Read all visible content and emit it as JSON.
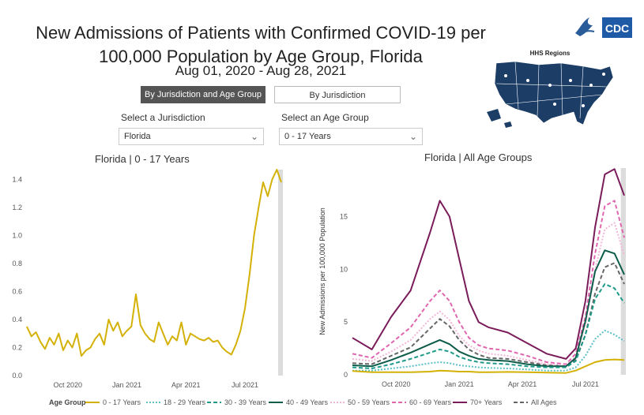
{
  "header": {
    "title_line1": "New Admissions of Patients with Confirmed COVID-19 per",
    "title_line2": "100,000 Population by Age Group, Florida",
    "date_range": "Aug 01, 2020 - Aug 28, 2021"
  },
  "logo": {
    "text": "CDC"
  },
  "tabs": {
    "by_jurisdiction_age": "By Jurisdiction and Age Group",
    "by_jurisdiction": "By Jurisdiction"
  },
  "filters": {
    "jurisdiction_label": "Select a Jurisdiction",
    "jurisdiction_value": "Florida",
    "age_label": "Select an Age Group",
    "age_value": "0 - 17 Years"
  },
  "map": {
    "title": "HHS Regions"
  },
  "legend": {
    "title": "Age Group",
    "items": [
      {
        "label": "0 - 17 Years",
        "color": "#d4b106",
        "dash": ""
      },
      {
        "label": "18 - 29 Years",
        "color": "#5bc0c8",
        "dash": "2,2"
      },
      {
        "label": "30 - 39 Years",
        "color": "#1d9a8a",
        "dash": "5,3"
      },
      {
        "label": "40 - 49 Years",
        "color": "#0d5c4a",
        "dash": ""
      },
      {
        "label": "50 - 59 Years",
        "color": "#f4b6d8",
        "dash": "2,2"
      },
      {
        "label": "60 - 69 Years",
        "color": "#e066b0",
        "dash": "5,3"
      },
      {
        "label": "70+ Years",
        "color": "#7a1c5a",
        "dash": ""
      },
      {
        "label": "All Ages",
        "color": "#666666",
        "dash": "5,3"
      }
    ]
  },
  "chart_data": [
    {
      "type": "line",
      "title": "Florida | 0 - 17 Years",
      "xlabel": "",
      "ylabel": "",
      "x_ticks": [
        "Oct 2020",
        "Jan 2021",
        "Apr 2021",
        "Jul 2021"
      ],
      "x_tick_weeks": [
        9,
        22,
        35,
        48
      ],
      "y_ticks": [
        0.0,
        0.2,
        0.4,
        0.6,
        0.8,
        1.0,
        1.2,
        1.4
      ],
      "ylim": [
        0,
        1.47
      ],
      "x_range_weeks": [
        0,
        56
      ],
      "series": [
        {
          "name": "0 - 17 Years",
          "color": "#d4b106",
          "values": [
            0.35,
            0.28,
            0.31,
            0.24,
            0.19,
            0.27,
            0.22,
            0.3,
            0.18,
            0.25,
            0.2,
            0.3,
            0.14,
            0.18,
            0.2,
            0.26,
            0.3,
            0.22,
            0.4,
            0.32,
            0.38,
            0.28,
            0.32,
            0.35,
            0.58,
            0.36,
            0.3,
            0.26,
            0.24,
            0.38,
            0.3,
            0.22,
            0.28,
            0.25,
            0.38,
            0.22,
            0.3,
            0.28,
            0.26,
            0.25,
            0.27,
            0.24,
            0.25,
            0.2,
            0.17,
            0.15,
            0.22,
            0.32,
            0.48,
            0.72,
            1.0,
            1.2,
            1.38,
            1.28,
            1.4,
            1.47,
            1.38
          ]
        }
      ]
    },
    {
      "type": "line",
      "title": "Florida | All Age Groups",
      "xlabel": "",
      "ylabel": "New Admissions per 100,000 Population",
      "x_ticks": [
        "Oct 2020",
        "Jan 2021",
        "Apr 2021",
        "Jul 2021"
      ],
      "x_tick_weeks": [
        9,
        22,
        35,
        48
      ],
      "y_ticks": [
        0,
        5,
        10,
        15
      ],
      "ylim": [
        0,
        19.6
      ],
      "x_range_weeks": [
        0,
        56
      ],
      "x": [
        0,
        4,
        8,
        12,
        16,
        18,
        20,
        22,
        24,
        26,
        28,
        32,
        36,
        40,
        44,
        46,
        48,
        50,
        52,
        54,
        56
      ],
      "series": [
        {
          "name": "70+ Years",
          "color": "#7a1c5a",
          "dash": "",
          "values": [
            3.5,
            2.4,
            5.5,
            8.0,
            13.5,
            16.5,
            15.0,
            11.0,
            7.0,
            5.0,
            4.5,
            4.0,
            3.0,
            2.0,
            1.5,
            2.5,
            7.0,
            14.0,
            19.0,
            19.5,
            17.0
          ]
        },
        {
          "name": "60 - 69 Years",
          "color": "#e066b0",
          "dash": "5,3",
          "values": [
            2.0,
            1.6,
            3.0,
            4.5,
            7.0,
            8.0,
            7.0,
            5.0,
            3.5,
            2.8,
            2.5,
            2.3,
            1.8,
            1.2,
            1.0,
            2.0,
            5.5,
            11.5,
            16.0,
            16.5,
            13.0
          ]
        },
        {
          "name": "50 - 59 Years",
          "color": "#f4b6d8",
          "dash": "2,2",
          "values": [
            1.5,
            1.3,
            2.2,
            3.3,
            5.3,
            6.0,
            5.2,
            3.7,
            2.8,
            2.3,
            2.0,
            1.8,
            1.4,
            1.0,
            0.9,
            1.7,
            4.8,
            10.0,
            13.8,
            14.4,
            11.3
          ]
        },
        {
          "name": "All Ages",
          "color": "#666666",
          "dash": "5,3",
          "values": [
            1.1,
            1.0,
            1.8,
            2.6,
            4.4,
            5.3,
            4.6,
            3.3,
            2.4,
            1.9,
            1.6,
            1.5,
            1.2,
            0.9,
            0.8,
            1.4,
            3.8,
            7.7,
            10.2,
            10.6,
            8.6
          ]
        },
        {
          "name": "40 - 49 Years",
          "color": "#0d5c4a",
          "dash": "",
          "values": [
            0.9,
            0.8,
            1.4,
            2.1,
            2.9,
            3.3,
            2.9,
            2.2,
            1.8,
            1.5,
            1.4,
            1.3,
            1.0,
            0.8,
            0.8,
            1.6,
            5.1,
            9.8,
            11.8,
            11.5,
            9.5
          ]
        },
        {
          "name": "30 - 39 Years",
          "color": "#1d9a8a",
          "dash": "5,3",
          "values": [
            0.7,
            0.6,
            1.0,
            1.5,
            2.1,
            2.4,
            2.2,
            1.7,
            1.4,
            1.2,
            1.1,
            1.0,
            0.8,
            0.7,
            0.7,
            1.3,
            3.8,
            7.2,
            8.6,
            8.2,
            6.8
          ]
        },
        {
          "name": "18 - 29 Years",
          "color": "#5bc0c8",
          "dash": "2,2",
          "values": [
            0.4,
            0.4,
            0.6,
            0.8,
            1.1,
            1.2,
            1.1,
            0.9,
            0.8,
            0.7,
            0.65,
            0.6,
            0.5,
            0.4,
            0.4,
            0.7,
            1.8,
            3.4,
            4.2,
            3.8,
            3.2
          ]
        },
        {
          "name": "0 - 17 Years",
          "color": "#d4b106",
          "dash": "",
          "values": [
            0.35,
            0.25,
            0.25,
            0.25,
            0.3,
            0.4,
            0.35,
            0.3,
            0.3,
            0.25,
            0.25,
            0.27,
            0.25,
            0.2,
            0.17,
            0.4,
            0.8,
            1.2,
            1.4,
            1.45,
            1.4
          ]
        }
      ]
    }
  ]
}
